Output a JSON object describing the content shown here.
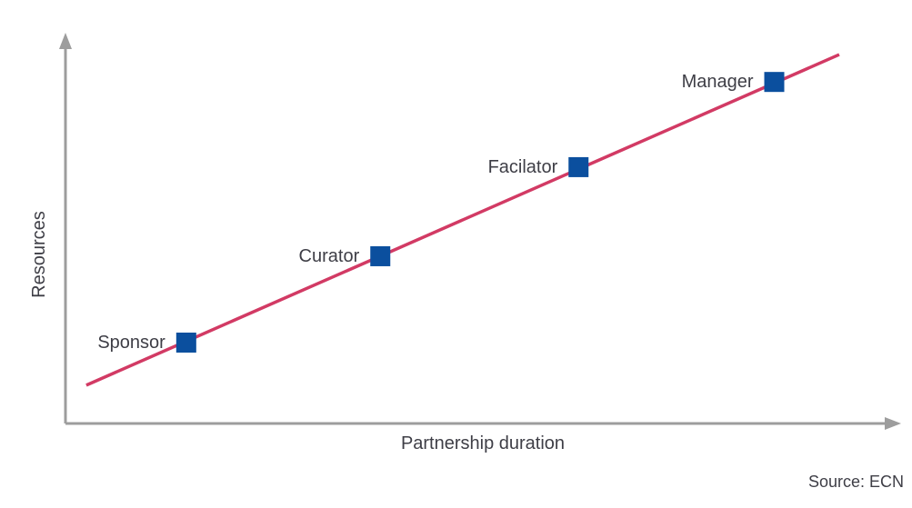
{
  "chart_data": {
    "type": "scatter",
    "title": "",
    "xlabel": "Partnership duration",
    "ylabel": "Resources",
    "xlim": [
      0,
      1
    ],
    "ylim": [
      0,
      1
    ],
    "grid": false,
    "legend": false,
    "axis_style": "arrow-ended axes, no ticks, no tick labels",
    "points": [
      {
        "label": "Sponsor",
        "x": 0.145,
        "y": 0.207
      },
      {
        "label": "Curator",
        "x": 0.378,
        "y": 0.428
      },
      {
        "label": "Facilator",
        "x": 0.616,
        "y": 0.656
      },
      {
        "label": "Manager",
        "x": 0.851,
        "y": 0.874
      }
    ],
    "trendline": {
      "x1": 0.025,
      "y1": 0.098,
      "x2": 0.929,
      "y2": 0.944
    },
    "colors": {
      "trend_line": "#d23a64",
      "marker": "#0b4f9e",
      "axis": "#9d9d9d",
      "text": "#3e3e46"
    }
  },
  "source_note": "Source: ECN"
}
